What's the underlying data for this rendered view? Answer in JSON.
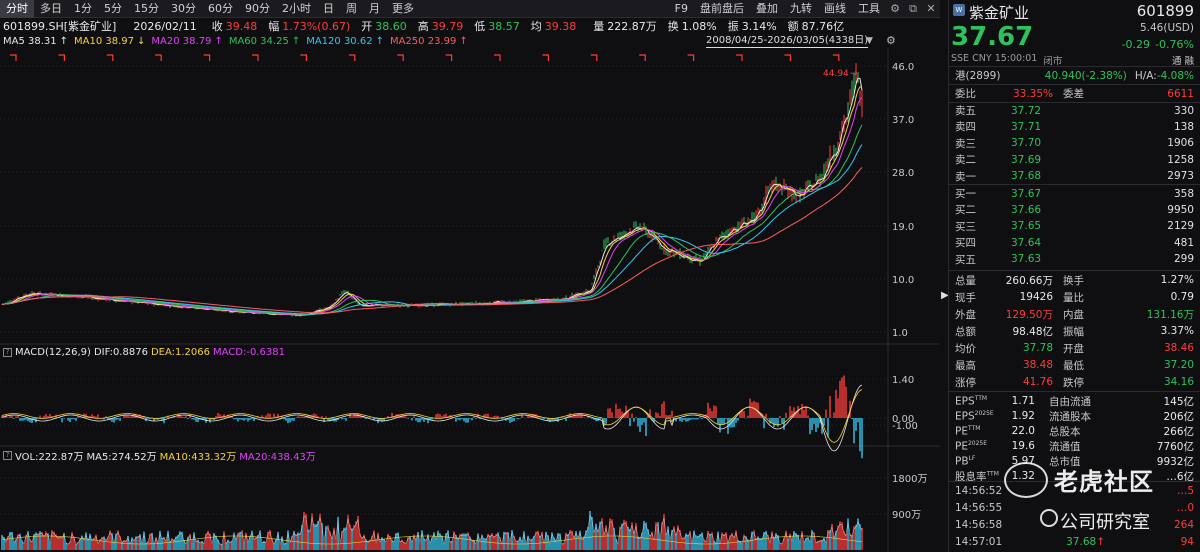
{
  "toolbar": {
    "tabs": [
      "分时",
      "多日",
      "1分",
      "5分",
      "15分",
      "30分",
      "60分",
      "90分",
      "2小时",
      "日",
      "周",
      "月",
      "更多"
    ],
    "right": [
      "F9",
      "盘前盘后",
      "叠加",
      "九转",
      "画线",
      "工具"
    ]
  },
  "info": {
    "code": "601899.SH[紫金矿业]",
    "date": "2026/02/11",
    "close_label": "收",
    "close": "39.48",
    "chg_label": "幅",
    "chg": "1.73%(0.67)",
    "open_label": "开",
    "open": "38.60",
    "high_label": "高",
    "high": "39.79",
    "low_label": "低",
    "low": "38.57",
    "avg_label": "均",
    "avg": "39.38",
    "vol_label": "量",
    "vol": "222.87万",
    "turn_label": "换",
    "turn": "1.08%",
    "amp_label": "振",
    "amp": "3.14%",
    "amt_label": "额",
    "amt": "87.76亿"
  },
  "ma": [
    {
      "label": "MA5 38.31",
      "arrow": "↑",
      "color": "#e8e8ea"
    },
    {
      "label": "MA10 38.97",
      "arrow": "↓",
      "color": "#f5d33a"
    },
    {
      "label": "MA20 38.79",
      "arrow": "↑",
      "color": "#e040fb"
    },
    {
      "label": "MA60 34.25",
      "arrow": "↑",
      "color": "#2fc25b"
    },
    {
      "label": "MA120 30.62",
      "arrow": "↑",
      "color": "#33c7f0"
    },
    {
      "label": "MA250 23.99",
      "arrow": "↑",
      "color": "#ff5b5b"
    }
  ],
  "range": "2008/04/25-2026/03/05(4338日)",
  "price_axis": [
    "46.0",
    "37.0",
    "28.0",
    "19.0",
    "10.0",
    "1.0"
  ],
  "max_label": "44.94",
  "macd": {
    "name": "MACD(12,26,9)",
    "dif": "DIF:0.8876",
    "dea": "DEA:1.2066",
    "macd": "MACD:-0.6381",
    "axis": [
      "1.40",
      "0.00",
      "-1.00"
    ]
  },
  "vol_panel": {
    "vol": "VOL:222.87万",
    "ma5": "MA5:274.52万",
    "ma10": "MA10:433.32万",
    "ma20": "MA20:438.43万",
    "axis": [
      "1800万",
      "900万"
    ]
  },
  "quote": {
    "name": "紫金矿业",
    "code": "601899",
    "price": "37.67",
    "usd": "5.46(USD)",
    "change": "-0.29",
    "change_pct": "-0.76%",
    "market": "SSE",
    "currency": "CNY",
    "time": "15:00:01",
    "status": "闭市",
    "tags": [
      "通",
      "融"
    ],
    "hk_label": "港(2899)",
    "hk_price": "40.940(-2.38%)",
    "ha_label": "H/A:",
    "ha_val": "-4.08%",
    "weibi_label": "委比",
    "weibi": "33.35%",
    "weicha_label": "委差",
    "weicha": "6611"
  },
  "asks": [
    {
      "label": "卖五",
      "price": "37.72",
      "vol": "330"
    },
    {
      "label": "卖四",
      "price": "37.71",
      "vol": "138"
    },
    {
      "label": "卖三",
      "price": "37.70",
      "vol": "1906"
    },
    {
      "label": "卖二",
      "price": "37.69",
      "vol": "1258"
    },
    {
      "label": "卖一",
      "price": "37.68",
      "vol": "2973"
    }
  ],
  "bids": [
    {
      "label": "买一",
      "price": "37.67",
      "vol": "358"
    },
    {
      "label": "买二",
      "price": "37.66",
      "vol": "9950"
    },
    {
      "label": "买三",
      "price": "37.65",
      "vol": "2129"
    },
    {
      "label": "买四",
      "price": "37.64",
      "vol": "481"
    },
    {
      "label": "买五",
      "price": "37.63",
      "vol": "299"
    }
  ],
  "stats": [
    {
      "k1": "总量",
      "v1": "260.66万",
      "c1": "white",
      "k2": "换手",
      "v2": "1.27%",
      "c2": "white"
    },
    {
      "k1": "现手",
      "v1": "19426",
      "c1": "white",
      "k2": "量比",
      "v2": "0.79",
      "c2": "white"
    },
    {
      "k1": "外盘",
      "v1": "129.50万",
      "c1": "red",
      "k2": "内盘",
      "v2": "131.16万",
      "c2": "green"
    },
    {
      "k1": "总额",
      "v1": "98.48亿",
      "c1": "white",
      "k2": "振幅",
      "v2": "3.37%",
      "c2": "white"
    },
    {
      "k1": "均价",
      "v1": "37.78",
      "c1": "green",
      "k2": "开盘",
      "v2": "38.46",
      "c2": "red"
    },
    {
      "k1": "最高",
      "v1": "38.48",
      "c1": "red",
      "k2": "最低",
      "v2": "37.20",
      "c2": "green"
    },
    {
      "k1": "涨停",
      "v1": "41.76",
      "c1": "red",
      "k2": "跌停",
      "v2": "34.16",
      "c2": "green"
    }
  ],
  "fundamentals": [
    {
      "k1": "EPS",
      "s1": "TTM",
      "v1": "1.71",
      "k2": "自由流通",
      "v2": "145亿"
    },
    {
      "k1": "EPS",
      "s1": "2025E",
      "v1": "1.92",
      "k2": "流通股本",
      "v2": "206亿"
    },
    {
      "k1": "PE",
      "s1": "TTM",
      "v1": "22.0",
      "k2": "总股本",
      "v2": "266亿"
    },
    {
      "k1": "PE",
      "s1": "2025E",
      "v1": "19.6",
      "k2": "流通值",
      "v2": "7760亿"
    },
    {
      "k1": "PB",
      "s1": "LF",
      "v1": "5.97",
      "k2": "总市值",
      "v2": "9932亿"
    },
    {
      "k1": "股息率",
      "s1": "TTM",
      "v1": "1.32",
      "k2": "",
      "v2": "…6亿"
    }
  ],
  "ticks": [
    {
      "time": "14:56:52",
      "price": "",
      "vol": "…5"
    },
    {
      "time": "14:56:55",
      "price": "",
      "vol": "…0"
    },
    {
      "time": "14:56:58",
      "price": "",
      "vol": "264"
    },
    {
      "time": "14:57:01",
      "price": "37.68",
      "arrow": "↑",
      "vol": "94"
    }
  ],
  "watermark": {
    "brand": "老虎社区",
    "sub": "公司研究室"
  }
}
